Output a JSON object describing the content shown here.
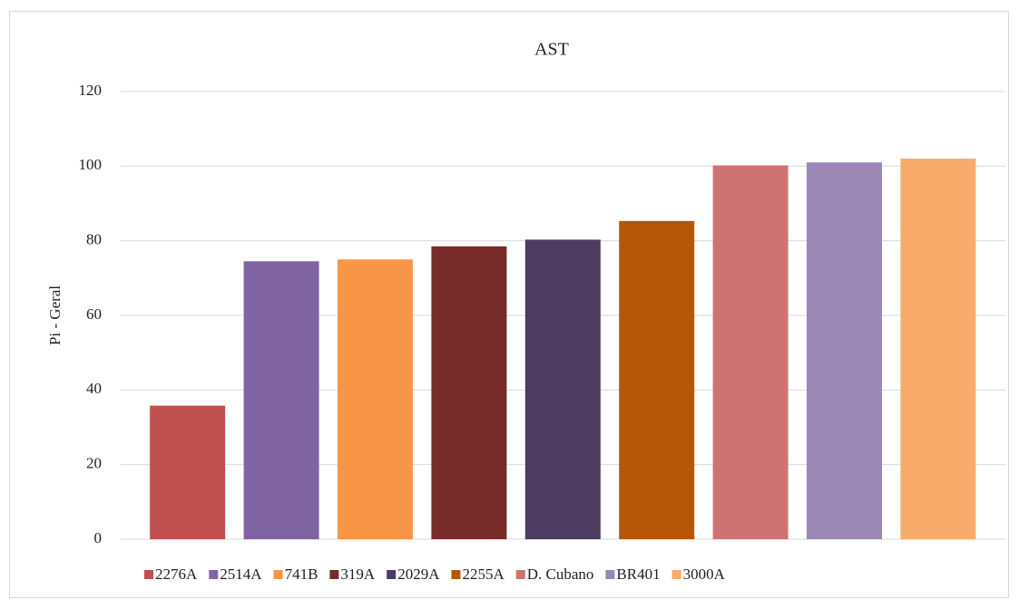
{
  "chart_data": {
    "type": "bar",
    "title": "AST",
    "y_label": "Pi - Geral",
    "categories": [
      "2276A",
      "2514A",
      "741B",
      "319A",
      "2029A",
      "2255A",
      "D. Cubano",
      "BR401",
      "3000A"
    ],
    "values": [
      35.8,
      74.5,
      75,
      78.5,
      80.3,
      85.3,
      100.2,
      101,
      102
    ],
    "colors": [
      "#c0504d",
      "#8064a2",
      "#f79646",
      "#772c2a",
      "#4d3b62",
      "#b65708",
      "#cd7371",
      "#9b87b5",
      "#f9ab6b"
    ],
    "ylim": [
      0,
      120
    ],
    "yticks": [
      0,
      20,
      40,
      60,
      80,
      100,
      120
    ],
    "grid": true,
    "legend": "bottom"
  }
}
